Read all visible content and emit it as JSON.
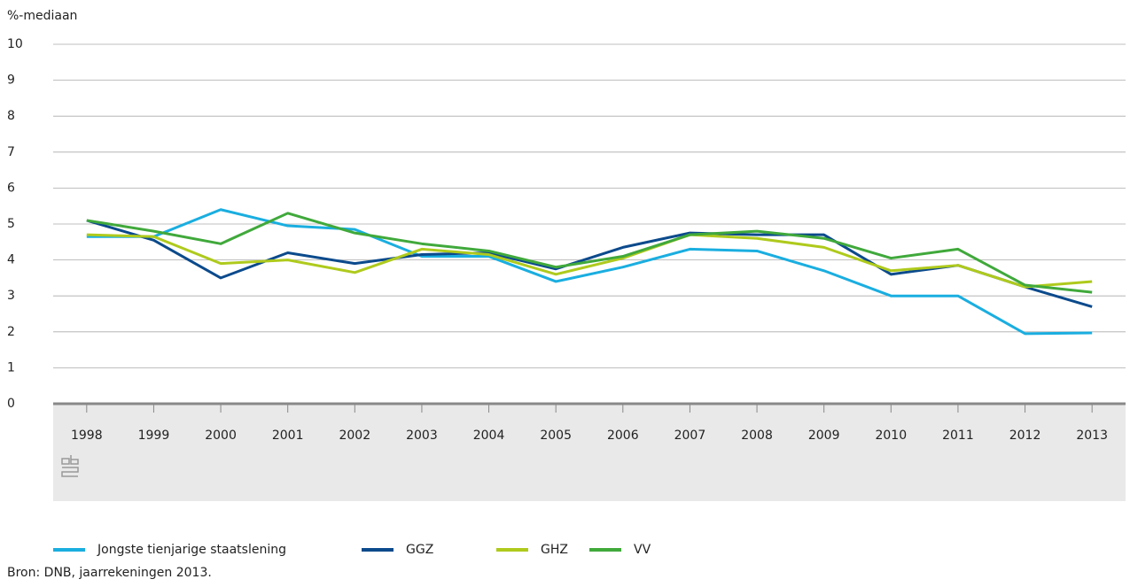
{
  "chart_data": {
    "type": "line",
    "y_axis_label": "%-mediaan",
    "categories": [
      "1998",
      "1999",
      "2000",
      "2001",
      "2002",
      "2003",
      "2004",
      "2005",
      "2006",
      "2007",
      "2008",
      "2009",
      "2010",
      "2011",
      "2012",
      "2013"
    ],
    "series": [
      {
        "name": "Jongste tienjarige staatslening",
        "color": "#1aaee0",
        "values": [
          4.65,
          4.65,
          5.4,
          4.95,
          4.85,
          4.1,
          4.1,
          3.4,
          3.8,
          4.3,
          4.25,
          3.7,
          3.0,
          3.0,
          1.95,
          1.97
        ]
      },
      {
        "name": "GGZ",
        "color": "#0b4a8c",
        "values": [
          5.1,
          4.55,
          3.5,
          4.2,
          3.9,
          4.15,
          4.2,
          3.75,
          4.35,
          4.75,
          4.7,
          4.7,
          3.6,
          3.85,
          3.25,
          2.7
        ]
      },
      {
        "name": "GHZ",
        "color": "#afca1c",
        "values": [
          4.7,
          4.65,
          3.9,
          4.0,
          3.65,
          4.3,
          4.15,
          3.6,
          4.05,
          4.7,
          4.6,
          4.35,
          3.7,
          3.85,
          3.25,
          3.4
        ]
      },
      {
        "name": "VV",
        "color": "#40a93b",
        "values": [
          5.1,
          4.8,
          4.45,
          5.3,
          4.75,
          4.45,
          4.25,
          3.8,
          4.1,
          4.7,
          4.8,
          4.6,
          4.05,
          4.3,
          3.3,
          3.1
        ]
      }
    ],
    "ylim": [
      0,
      10
    ],
    "yticks": [
      0,
      1,
      2,
      3,
      4,
      5,
      6,
      7,
      8,
      9,
      10
    ],
    "grid": true,
    "source": "Bron: DNB, jaarrekeningen 2013."
  }
}
